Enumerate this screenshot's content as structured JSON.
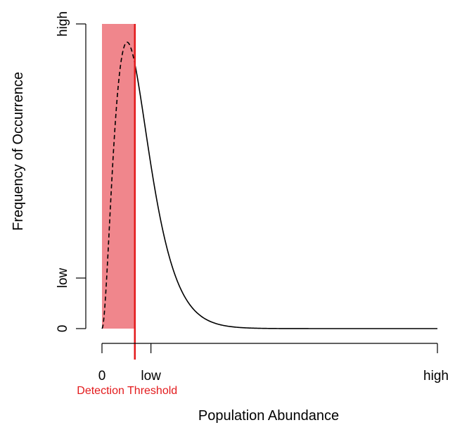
{
  "chart_data": {
    "type": "line",
    "xlabel": "Population Abundance",
    "ylabel": "Frequency of Occurrence",
    "x_ticks": [
      {
        "value": 0,
        "label": "0"
      },
      {
        "value": 0.146,
        "label": "low"
      },
      {
        "value": 1,
        "label": "high"
      }
    ],
    "y_ticks": [
      {
        "value": 0,
        "label": "0"
      },
      {
        "value": 0.166,
        "label": "low"
      },
      {
        "value": 1,
        "label": "high"
      }
    ],
    "xlim": [
      0,
      1
    ],
    "ylim": [
      0,
      1
    ],
    "grid": false,
    "threshold": {
      "value": 0.098,
      "label": "Detection Threshold",
      "color": "#e31a1c",
      "band_color": "#f0868c"
    },
    "curve": {
      "color": "#000000",
      "peak_x": 0.075,
      "peak_y": 0.94,
      "dashed_below_threshold": true
    }
  }
}
